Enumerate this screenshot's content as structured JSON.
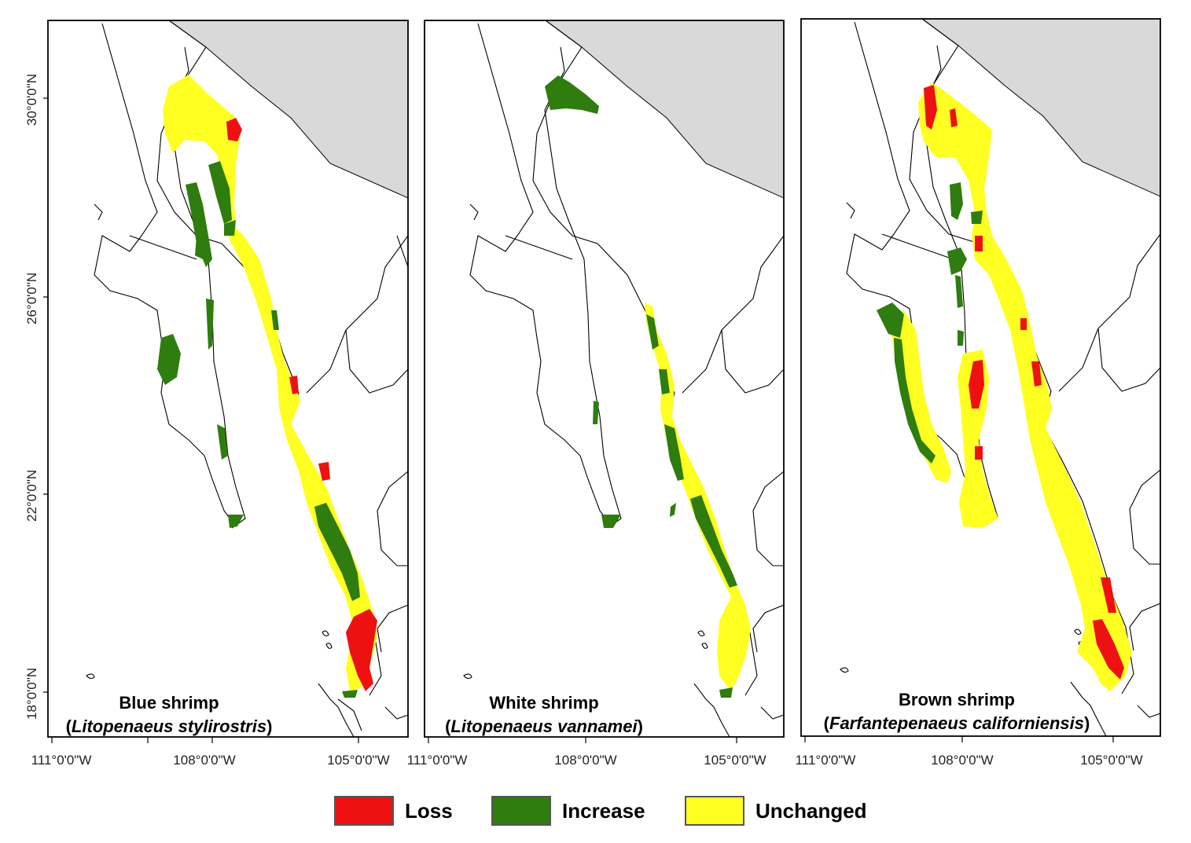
{
  "colors": {
    "loss": "#ee1111",
    "increase": "#2e7d0e",
    "unchanged": "#ffff22",
    "land_grey": "#d9d9d9",
    "border": "#000000"
  },
  "y_axis_labels": [
    "30°0'0\"N",
    "26°0'0\"N",
    "22°0'0\"N",
    "18°0'0\"N"
  ],
  "panels": [
    {
      "id": "blue",
      "common_name": "Blue shrimp",
      "scientific_name": "Litopenaeus stylirostris",
      "x_axis_labels": [
        "111°0'0\"W",
        "108°0'0\"W",
        "105°0'0\"W"
      ]
    },
    {
      "id": "white",
      "common_name": "White shrimp",
      "scientific_name": "Litopenaeus vannamei",
      "x_axis_labels": [
        "111°0'0\"W",
        "108°0'0\"W",
        "105°0'0\"W"
      ]
    },
    {
      "id": "brown",
      "common_name": "Brown shrimp",
      "scientific_name": "Farfantepenaeus californiensis",
      "x_axis_labels": [
        "111°0'0\"W",
        "108°0'0\"W",
        "105°0'0\"W"
      ]
    }
  ],
  "legend": [
    {
      "key": "loss",
      "label": "Loss"
    },
    {
      "key": "increase",
      "label": "Increase"
    },
    {
      "key": "unchanged",
      "label": "Unchanged"
    }
  ]
}
